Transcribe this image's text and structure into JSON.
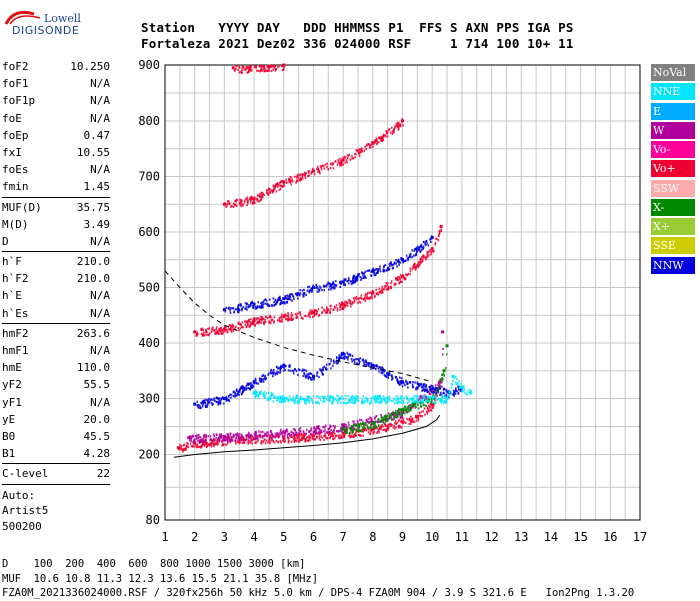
{
  "logo": {
    "line1": "Lowell",
    "line2": "DIGISONDE"
  },
  "header": {
    "line1": "Station   YYYY DAY   DDD HHMMSS P1  FFS S AXN PPS IGA PS",
    "line2": "Fortaleza 2021 Dez02 336 024000 RSF     1 714 100 10+ 11"
  },
  "params": {
    "group1": [
      {
        "name": "foF2",
        "value": "10.250"
      },
      {
        "name": "foF1",
        "value": "N/A"
      },
      {
        "name": "foF1p",
        "value": "N/A"
      },
      {
        "name": "foE",
        "value": "N/A"
      },
      {
        "name": "foEp",
        "value": "0.47"
      },
      {
        "name": "fxI",
        "value": "10.55"
      },
      {
        "name": "foEs",
        "value": "N/A"
      },
      {
        "name": "fmin",
        "value": "1.45"
      }
    ],
    "group2": [
      {
        "name": "MUF(D)",
        "value": "35.75"
      },
      {
        "name": "M(D)",
        "value": "3.49"
      },
      {
        "name": "D",
        "value": "N/A"
      }
    ],
    "group3": [
      {
        "name": "h`F",
        "value": "210.0"
      },
      {
        "name": "h`F2",
        "value": "210.0"
      },
      {
        "name": "h`E",
        "value": "N/A"
      },
      {
        "name": "h`Es",
        "value": "N/A"
      }
    ],
    "group4": [
      {
        "name": "hmF2",
        "value": "263.6"
      },
      {
        "name": "hmF1",
        "value": "N/A"
      },
      {
        "name": "hmE",
        "value": "110.0"
      },
      {
        "name": "yF2",
        "value": "55.5"
      },
      {
        "name": "yF1",
        "value": "N/A"
      },
      {
        "name": "yE",
        "value": "20.0"
      },
      {
        "name": "B0",
        "value": "45.5"
      },
      {
        "name": "B1",
        "value": "4.28"
      }
    ],
    "clevel": {
      "name": "C-level",
      "value": "22"
    },
    "auto": [
      "Auto:",
      "Artist5",
      "500200"
    ]
  },
  "legend": [
    {
      "label": "NoVal",
      "bg": "#808080",
      "fg": "#ffffff"
    },
    {
      "label": "NNE",
      "bg": "#00e6ff",
      "fg": "#ffffff"
    },
    {
      "label": "E",
      "bg": "#00aaff",
      "fg": "#ffffff"
    },
    {
      "label": "W",
      "bg": "#b0009c",
      "fg": "#ffffff"
    },
    {
      "label": "Vo-",
      "bg": "#ff0099",
      "fg": "#ffffff"
    },
    {
      "label": "Vo+",
      "bg": "#ee0033",
      "fg": "#ffffff"
    },
    {
      "label": "SSW",
      "bg": "#ffaaaa",
      "fg": "#ffffff"
    },
    {
      "label": "X-",
      "bg": "#008800",
      "fg": "#ffffff"
    },
    {
      "label": "X+",
      "bg": "#99cc33",
      "fg": "#ffffff"
    },
    {
      "label": "SSE",
      "bg": "#cccc00",
      "fg": "#ffffff"
    },
    {
      "label": "NNW",
      "bg": "#0000dd",
      "fg": "#ffffff"
    }
  ],
  "footer": {
    "line1": "D    100  200  400  600  800 1000 1500 3000 [km]",
    "line2": "MUF  10.6 10.8 11.3 12.3 13.6 15.5 21.1 35.8 [MHz]",
    "line3": "FZA0M_2021336024000.RSF / 320fx256h 50 kHz 5.0 km / DPS-4 FZA0M 904 / 3.9 S 321.6 E   Ion2Png 1.3.20"
  },
  "chart_data": {
    "type": "scatter",
    "title": "",
    "xlabel": "",
    "ylabel": "",
    "xlim": [
      1,
      17
    ],
    "ylim": [
      80,
      900
    ],
    "xticks": [
      1,
      2,
      3,
      4,
      5,
      6,
      7,
      8,
      9,
      10,
      11,
      12,
      13,
      14,
      15,
      16,
      17
    ],
    "yticks": [
      80,
      200,
      300,
      400,
      500,
      600,
      700,
      800,
      900
    ],
    "grid": true,
    "series": [
      {
        "name": "Vo+",
        "color": "#ee0033",
        "points": [
          [
            1.45,
            212
          ],
          [
            2,
            220
          ],
          [
            3,
            226
          ],
          [
            4,
            228
          ],
          [
            5,
            230
          ],
          [
            6,
            233
          ],
          [
            7,
            238
          ],
          [
            8,
            245
          ],
          [
            9,
            258
          ],
          [
            9.5,
            268
          ],
          [
            10,
            290
          ],
          [
            10.25,
            330
          ]
        ]
      },
      {
        "name": "W",
        "color": "#b0009c",
        "points": [
          [
            1.8,
            230
          ],
          [
            3,
            232
          ],
          [
            5,
            240
          ],
          [
            7,
            250
          ],
          [
            9,
            275
          ],
          [
            10.3,
            330
          ],
          [
            10.35,
            420
          ]
        ]
      },
      {
        "name": "X-",
        "color": "#008800",
        "points": [
          [
            7,
            245
          ],
          [
            8,
            255
          ],
          [
            9,
            280
          ],
          [
            10,
            300
          ],
          [
            10.4,
            350
          ],
          [
            10.5,
            395
          ]
        ]
      },
      {
        "name": "NNW",
        "color": "#0000dd",
        "points": [
          [
            2,
            290
          ],
          [
            3,
            300
          ],
          [
            4,
            330
          ],
          [
            5,
            360
          ],
          [
            6,
            340
          ],
          [
            7,
            380
          ],
          [
            8,
            360
          ],
          [
            9,
            330
          ],
          [
            10.6,
            310
          ],
          [
            11,
            320
          ]
        ]
      },
      {
        "name": "NNE",
        "color": "#00e6ff",
        "points": [
          [
            10.5,
            300
          ],
          [
            10.7,
            340
          ],
          [
            11,
            320
          ],
          [
            11.3,
            310
          ],
          [
            4,
            310
          ],
          [
            5,
            300
          ]
        ]
      },
      {
        "name": "Vo+ 2F",
        "color": "#ee0033",
        "points": [
          [
            2,
            420
          ],
          [
            3,
            425
          ],
          [
            4,
            440
          ],
          [
            5,
            448
          ],
          [
            6,
            455
          ],
          [
            7,
            470
          ],
          [
            8,
            490
          ],
          [
            9,
            520
          ],
          [
            10,
            570
          ],
          [
            10.3,
            610
          ]
        ]
      },
      {
        "name": "NNW 2F",
        "color": "#0000dd",
        "points": [
          [
            3,
            460
          ],
          [
            4,
            470
          ],
          [
            5,
            480
          ],
          [
            6,
            500
          ],
          [
            7,
            510
          ],
          [
            8,
            530
          ],
          [
            9,
            550
          ],
          [
            10,
            590
          ]
        ]
      },
      {
        "name": "Vo+ 3F",
        "color": "#ee0033",
        "points": [
          [
            3,
            650
          ],
          [
            4,
            660
          ],
          [
            5,
            690
          ],
          [
            6,
            710
          ],
          [
            7,
            730
          ],
          [
            8,
            760
          ],
          [
            9,
            800
          ]
        ]
      },
      {
        "name": "Vo+ 4F",
        "color": "#ee0033",
        "points": [
          [
            3.3,
            895
          ],
          [
            3.8,
            895
          ],
          [
            4.5,
            898
          ],
          [
            5,
            900
          ]
        ]
      }
    ],
    "profile_curve": [
      [
        1.3,
        195
      ],
      [
        2,
        200
      ],
      [
        3,
        205
      ],
      [
        4,
        208
      ],
      [
        5,
        212
      ],
      [
        6,
        216
      ],
      [
        7,
        221
      ],
      [
        8,
        228
      ],
      [
        9,
        238
      ],
      [
        9.8,
        250
      ],
      [
        10.15,
        262
      ],
      [
        10.25,
        270
      ]
    ],
    "dashed_curve": [
      [
        1,
        530
      ],
      [
        1.5,
        500
      ],
      [
        2,
        472
      ],
      [
        2.5,
        450
      ],
      [
        3,
        432
      ],
      [
        4,
        410
      ],
      [
        5,
        392
      ],
      [
        6,
        378
      ],
      [
        7,
        366
      ],
      [
        8,
        355
      ],
      [
        9,
        345
      ],
      [
        10,
        330
      ]
    ]
  }
}
